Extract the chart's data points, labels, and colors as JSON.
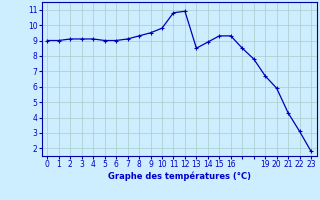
{
  "x": [
    0,
    1,
    2,
    3,
    4,
    5,
    6,
    7,
    8,
    9,
    10,
    11,
    12,
    13,
    14,
    15,
    16,
    17,
    18,
    19,
    20,
    21,
    22,
    23
  ],
  "y": [
    9.0,
    9.0,
    9.1,
    9.1,
    9.1,
    9.0,
    9.0,
    9.1,
    9.3,
    9.5,
    9.8,
    10.8,
    10.9,
    8.5,
    8.9,
    9.3,
    9.3,
    8.5,
    7.8,
    6.7,
    5.9,
    4.3,
    3.1,
    1.8
  ],
  "line_color": "#0000bb",
  "marker": "+",
  "markersize": 3.5,
  "linewidth": 0.9,
  "background_color": "#cceeff",
  "grid_color": "#aacccc",
  "xlabel": "Graphe des températures (°C)",
  "xlabel_color": "#0000cc",
  "tick_color": "#0000cc",
  "xlim": [
    -0.5,
    23.5
  ],
  "ylim": [
    1.5,
    11.5
  ],
  "yticks": [
    2,
    3,
    4,
    5,
    6,
    7,
    8,
    9,
    10,
    11
  ],
  "xtick_labels": [
    "0",
    "1",
    "2",
    "3",
    "4",
    "5",
    "6",
    "7",
    "8",
    "9",
    "10",
    "11",
    "12",
    "13",
    "14",
    "15",
    "16",
    "",
    "",
    "19",
    "20",
    "21",
    "22",
    "23"
  ],
  "spine_color": "#0000aa"
}
